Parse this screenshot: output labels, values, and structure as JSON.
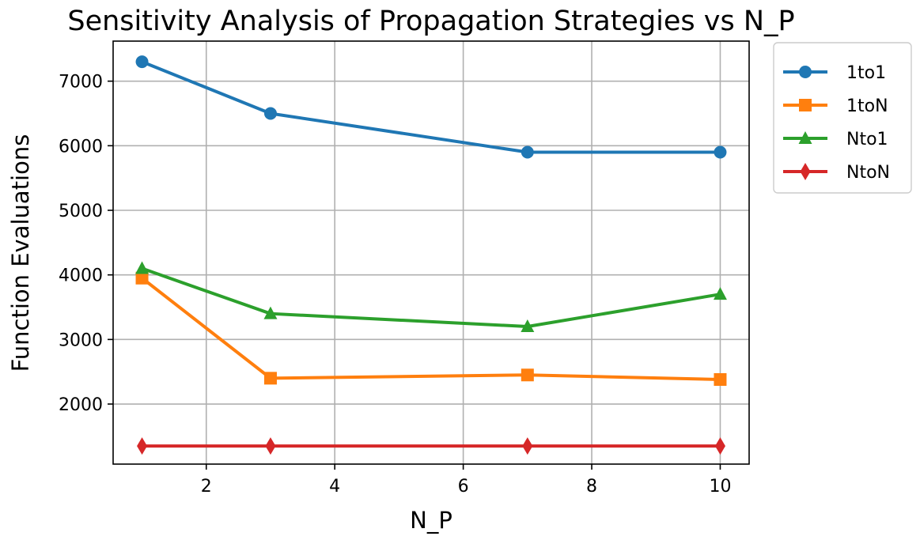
{
  "chart_data": {
    "type": "line",
    "title": "Sensitivity Analysis of Propagation Strategies vs N_P",
    "xlabel": "N_P",
    "ylabel": "Function Evaluations",
    "x": [
      1,
      3,
      7,
      10
    ],
    "xlim": [
      0.55,
      10.45
    ],
    "ylim": [
      1070,
      7620
    ],
    "xticks": [
      2,
      4,
      6,
      8,
      10
    ],
    "yticks": [
      2000,
      3000,
      4000,
      5000,
      6000,
      7000
    ],
    "grid": true,
    "legend_position": "outside-top-right",
    "series": [
      {
        "name": "1to1",
        "values": [
          7300,
          6500,
          5900,
          5900
        ],
        "color": "#1f77b4",
        "marker": "circle"
      },
      {
        "name": "1toN",
        "values": [
          3950,
          2400,
          2450,
          2380
        ],
        "color": "#ff7f0e",
        "marker": "square"
      },
      {
        "name": "Nto1",
        "values": [
          4100,
          3400,
          3200,
          3700
        ],
        "color": "#2ca02c",
        "marker": "triangle"
      },
      {
        "name": "NtoN",
        "values": [
          1350,
          1350,
          1350,
          1350
        ],
        "color": "#d62728",
        "marker": "diamond"
      }
    ]
  }
}
